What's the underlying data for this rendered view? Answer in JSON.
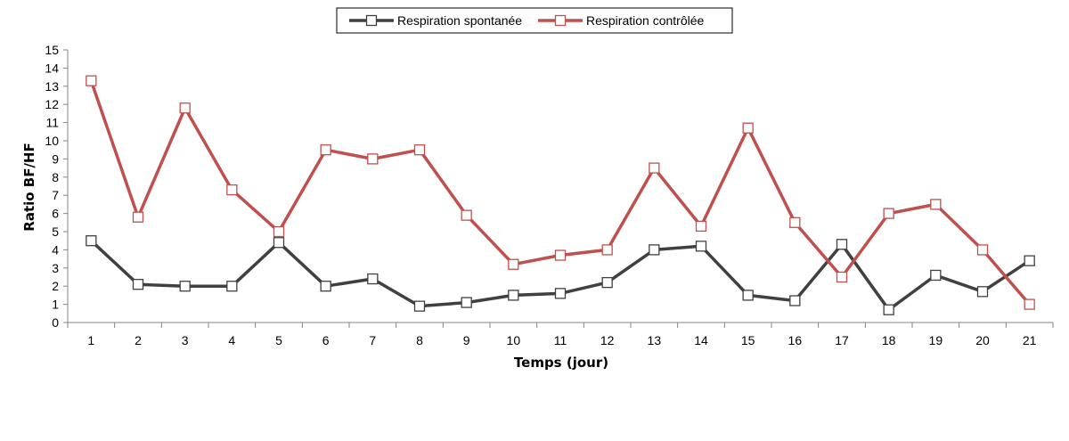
{
  "chart_data": {
    "type": "line",
    "title": "",
    "xlabel": "Temps (jour)",
    "ylabel": "Ratio BF/HF",
    "categories": [
      "1",
      "2",
      "3",
      "4",
      "5",
      "6",
      "7",
      "8",
      "9",
      "10",
      "11",
      "12",
      "13",
      "14",
      "15",
      "16",
      "17",
      "18",
      "19",
      "20",
      "21"
    ],
    "ylim": [
      0,
      15
    ],
    "yticks": [
      "0",
      "1",
      "2",
      "3",
      "4",
      "5",
      "6",
      "7",
      "8",
      "9",
      "10",
      "11",
      "12",
      "13",
      "14",
      "15"
    ],
    "grid": false,
    "legend_position": "top-center",
    "series": [
      {
        "name": "Respiration spontanée",
        "color": "#404040",
        "marker": "open-square",
        "values": [
          4.5,
          2.1,
          2.0,
          2.0,
          4.4,
          2.0,
          2.4,
          0.9,
          1.1,
          1.5,
          1.6,
          2.2,
          4.0,
          4.2,
          1.5,
          1.2,
          4.3,
          0.7,
          2.6,
          1.7,
          3.4
        ]
      },
      {
        "name": "Respiration contrôlée",
        "color": "#c0504d",
        "marker": "open-square",
        "values": [
          13.3,
          5.8,
          11.8,
          7.3,
          5.0,
          9.5,
          9.0,
          9.5,
          5.9,
          3.2,
          3.7,
          4.0,
          8.5,
          5.3,
          10.7,
          5.5,
          2.5,
          6.0,
          6.5,
          4.0,
          1.0
        ]
      }
    ]
  }
}
